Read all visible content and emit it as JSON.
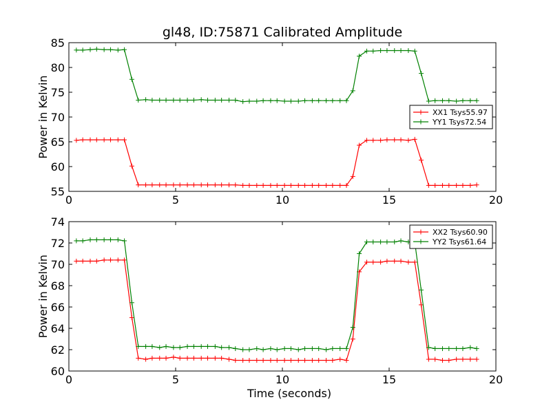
{
  "chart_data": [
    {
      "type": "line",
      "title": "gl48, ID:75871 Calibrated Amplitude",
      "xlabel": "",
      "ylabel": "Power in Kelvin",
      "xlim": [
        0,
        20
      ],
      "ylim": [
        55,
        85
      ],
      "xticks": [
        0,
        5,
        10,
        15,
        20
      ],
      "yticks": [
        55,
        60,
        65,
        70,
        75,
        80,
        85
      ],
      "grid": false,
      "legend_position": "center-right",
      "x": [
        0.35,
        0.65,
        1.0,
        1.3,
        1.65,
        1.95,
        2.3,
        2.6,
        2.95,
        3.25,
        3.6,
        3.9,
        4.25,
        4.55,
        4.9,
        5.2,
        5.55,
        5.85,
        6.2,
        6.5,
        6.85,
        7.15,
        7.5,
        7.8,
        8.15,
        8.45,
        8.8,
        9.1,
        9.45,
        9.75,
        10.1,
        10.4,
        10.75,
        11.05,
        11.4,
        11.7,
        12.05,
        12.35,
        12.7,
        13.0,
        13.3,
        13.6,
        13.95,
        14.25,
        14.6,
        14.9,
        15.25,
        15.55,
        15.9,
        16.2,
        16.5,
        16.85,
        17.15,
        17.5,
        17.8,
        18.15,
        18.45,
        18.8,
        19.1
      ],
      "series": [
        {
          "name": "XX1 Tsys55.97",
          "color": "#ff0000",
          "values": [
            65.3,
            65.4,
            65.4,
            65.4,
            65.4,
            65.4,
            65.4,
            65.4,
            60.1,
            56.3,
            56.3,
            56.3,
            56.3,
            56.3,
            56.3,
            56.3,
            56.3,
            56.3,
            56.3,
            56.3,
            56.3,
            56.3,
            56.3,
            56.3,
            56.2,
            56.2,
            56.2,
            56.2,
            56.2,
            56.2,
            56.2,
            56.2,
            56.2,
            56.2,
            56.2,
            56.2,
            56.2,
            56.2,
            56.2,
            56.2,
            58.0,
            64.3,
            65.3,
            65.3,
            65.3,
            65.4,
            65.4,
            65.4,
            65.3,
            65.5,
            61.3,
            56.2,
            56.2,
            56.2,
            56.2,
            56.2,
            56.2,
            56.2,
            56.3
          ]
        },
        {
          "name": "YY1 Tsys72.54",
          "color": "#008000",
          "values": [
            83.5,
            83.5,
            83.6,
            83.7,
            83.6,
            83.6,
            83.5,
            83.6,
            77.6,
            73.4,
            73.5,
            73.4,
            73.4,
            73.4,
            73.4,
            73.4,
            73.4,
            73.4,
            73.5,
            73.4,
            73.4,
            73.4,
            73.4,
            73.4,
            73.1,
            73.2,
            73.2,
            73.3,
            73.3,
            73.3,
            73.2,
            73.2,
            73.2,
            73.3,
            73.3,
            73.3,
            73.3,
            73.3,
            73.3,
            73.3,
            75.3,
            82.3,
            83.3,
            83.3,
            83.4,
            83.4,
            83.4,
            83.4,
            83.4,
            83.3,
            78.8,
            73.2,
            73.3,
            73.3,
            73.3,
            73.2,
            73.3,
            73.3,
            73.3
          ]
        }
      ]
    },
    {
      "type": "line",
      "title": "",
      "xlabel": "Time (seconds)",
      "ylabel": "Power in Kelvin",
      "xlim": [
        0,
        20
      ],
      "ylim": [
        60,
        74
      ],
      "xticks": [
        0,
        5,
        10,
        15,
        20
      ],
      "yticks": [
        60,
        62,
        64,
        66,
        68,
        70,
        72,
        74
      ],
      "grid": false,
      "legend_position": "top-right",
      "x": [
        0.35,
        0.65,
        1.0,
        1.3,
        1.65,
        1.95,
        2.3,
        2.6,
        2.95,
        3.25,
        3.6,
        3.9,
        4.25,
        4.55,
        4.9,
        5.2,
        5.55,
        5.85,
        6.2,
        6.5,
        6.85,
        7.15,
        7.5,
        7.8,
        8.15,
        8.45,
        8.8,
        9.1,
        9.45,
        9.75,
        10.1,
        10.4,
        10.75,
        11.05,
        11.4,
        11.7,
        12.05,
        12.35,
        12.7,
        13.0,
        13.3,
        13.6,
        13.95,
        14.25,
        14.6,
        14.9,
        15.25,
        15.55,
        15.9,
        16.2,
        16.5,
        16.85,
        17.15,
        17.5,
        17.8,
        18.15,
        18.45,
        18.8,
        19.1
      ],
      "series": [
        {
          "name": "XX2 Tsys60.90",
          "color": "#ff0000",
          "values": [
            70.3,
            70.3,
            70.3,
            70.3,
            70.4,
            70.4,
            70.4,
            70.4,
            65.0,
            61.2,
            61.1,
            61.2,
            61.2,
            61.2,
            61.3,
            61.2,
            61.2,
            61.2,
            61.2,
            61.2,
            61.2,
            61.2,
            61.1,
            61.0,
            61.0,
            61.0,
            61.0,
            61.0,
            61.0,
            61.0,
            61.0,
            61.0,
            61.0,
            61.0,
            61.0,
            61.0,
            61.0,
            61.0,
            61.1,
            61.0,
            63.0,
            69.3,
            70.2,
            70.2,
            70.2,
            70.3,
            70.3,
            70.3,
            70.2,
            70.2,
            66.2,
            61.1,
            61.1,
            61.0,
            61.0,
            61.1,
            61.1,
            61.1,
            61.1
          ]
        },
        {
          "name": "YY2 Tsys61.64",
          "color": "#008000",
          "values": [
            72.2,
            72.2,
            72.3,
            72.3,
            72.3,
            72.3,
            72.3,
            72.2,
            66.4,
            62.3,
            62.3,
            62.3,
            62.2,
            62.3,
            62.2,
            62.2,
            62.3,
            62.3,
            62.3,
            62.3,
            62.3,
            62.2,
            62.2,
            62.1,
            62.0,
            62.0,
            62.1,
            62.0,
            62.1,
            62.0,
            62.1,
            62.1,
            62.0,
            62.1,
            62.1,
            62.1,
            62.0,
            62.1,
            62.1,
            62.1,
            64.1,
            71.0,
            72.1,
            72.1,
            72.1,
            72.1,
            72.1,
            72.2,
            72.1,
            72.1,
            67.6,
            62.2,
            62.1,
            62.1,
            62.1,
            62.1,
            62.1,
            62.2,
            62.1
          ]
        }
      ]
    }
  ]
}
